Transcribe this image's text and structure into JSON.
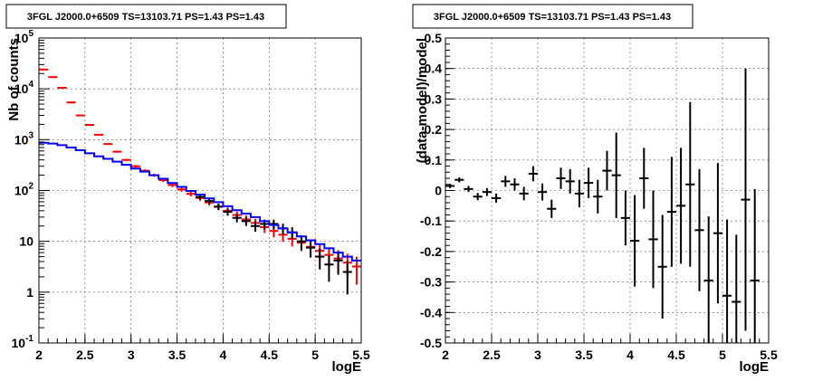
{
  "chart_data": [
    {
      "type": "scatter",
      "title": "3FGL J2000.0+6509 TS=13103.71 PS=1.43 PS=1.43",
      "xlabel": "logE",
      "ylabel": "Nb of counts",
      "yscale": "log",
      "xlim": [
        2,
        5.5
      ],
      "ylim": [
        0.1,
        100000
      ],
      "grid": true,
      "x_ticks": [
        "2",
        "2.5",
        "3",
        "3.5",
        "4",
        "4.5",
        "5",
        "5.5"
      ],
      "y_ticks": [
        "10^-1",
        "1",
        "10",
        "10^2",
        "10^3",
        "10^4",
        "10^5"
      ],
      "bin_width": 0.1,
      "series": [
        {
          "color": "#ff0000",
          "style": "errorbar",
          "x": [
            2.05,
            2.15,
            2.25,
            2.35,
            2.45,
            2.55,
            2.65,
            2.75,
            2.85,
            2.95,
            3.05,
            3.15,
            3.25,
            3.35,
            3.45,
            3.55,
            3.65,
            3.75,
            3.85,
            3.95,
            4.05,
            4.15,
            4.25,
            4.35,
            4.45,
            4.55,
            4.65,
            4.75,
            4.85,
            4.95,
            5.05,
            5.15,
            5.25,
            5.35,
            5.45
          ],
          "y": [
            24000,
            17000,
            10500,
            5400,
            3000,
            1950,
            1250,
            820,
            580,
            400,
            300,
            245,
            200,
            160,
            128,
            105,
            86,
            71,
            58,
            48,
            40,
            33,
            27,
            23,
            19,
            16,
            13.5,
            11.2,
            9.4,
            7.8,
            6.5,
            5.4,
            4.6,
            3.8,
            3.2
          ],
          "err": [
            150,
            120,
            100,
            70,
            55,
            45,
            35,
            29,
            24,
            20,
            17,
            16,
            14,
            13,
            11,
            10,
            9.3,
            8.4,
            7.6,
            6.9,
            6.3,
            5.7,
            5.2,
            4.8,
            4.4,
            4,
            3.7,
            3.3,
            3,
            2.8,
            2.5,
            2.3,
            2.1,
            1.9,
            1.8
          ]
        },
        {
          "color": "#000000",
          "style": "errorbar",
          "x": [
            3.75,
            3.85,
            3.95,
            4.05,
            4.15,
            4.25,
            4.35,
            4.45,
            4.55,
            4.65,
            4.75,
            4.85,
            4.95,
            5.05,
            5.15,
            5.25,
            5.35
          ],
          "y": [
            75,
            62,
            48,
            38,
            29,
            25,
            20,
            22,
            22,
            18,
            15,
            10,
            7.5,
            5,
            3.5,
            4.2,
            2.5
          ],
          "err": [
            8.7,
            7.9,
            6.9,
            6.2,
            5.4,
            5,
            4.5,
            4.7,
            4.7,
            4.2,
            3.9,
            3.2,
            2.7,
            2.2,
            1.9,
            2,
            1.6
          ]
        },
        {
          "color": "#0000ff",
          "style": "step",
          "x": [
            2.05,
            2.15,
            2.25,
            2.35,
            2.45,
            2.55,
            2.65,
            2.75,
            2.85,
            2.95,
            3.05,
            3.15,
            3.25,
            3.35,
            3.45,
            3.55,
            3.65,
            3.75,
            3.85,
            3.95,
            4.05,
            4.15,
            4.25,
            4.35,
            4.45,
            4.55,
            4.65,
            4.75,
            4.85,
            4.95,
            5.05,
            5.15,
            5.25,
            5.35,
            5.45
          ],
          "y": [
            870,
            840,
            780,
            700,
            620,
            540,
            470,
            420,
            370,
            320,
            270,
            235,
            200,
            170,
            140,
            118,
            98,
            83,
            70,
            59,
            49,
            41,
            35,
            30,
            25,
            21,
            18,
            15,
            12.5,
            10.5,
            8.8,
            7.3,
            6,
            5,
            4.2
          ]
        }
      ]
    },
    {
      "type": "scatter",
      "title": "3FGL J2000.0+6509 TS=13103.71 PS=1.43 PS=1.43",
      "xlabel": "logE",
      "ylabel": "(data-model)/model",
      "xlim": [
        2,
        5.5
      ],
      "ylim": [
        -0.5,
        0.5
      ],
      "grid": true,
      "x_ticks": [
        "2",
        "2.5",
        "3",
        "3.5",
        "4",
        "4.5",
        "5",
        "5.5"
      ],
      "y_ticks": [
        "-0.5",
        "-0.4",
        "-0.3",
        "-0.2",
        "-0.1",
        "0",
        "0.1",
        "0.2",
        "0.3",
        "0.4",
        "0.5"
      ],
      "bin_width": 0.1,
      "series": [
        {
          "color": "#000000",
          "style": "errorbar",
          "x": [
            2.05,
            2.15,
            2.25,
            2.35,
            2.45,
            2.55,
            2.65,
            2.75,
            2.85,
            2.95,
            3.05,
            3.15,
            3.25,
            3.35,
            3.45,
            3.55,
            3.65,
            3.75,
            3.85,
            3.95,
            4.05,
            4.15,
            4.25,
            4.35,
            4.45,
            4.55,
            4.65,
            4.75,
            4.85,
            4.95,
            5.05,
            5.15,
            5.25,
            5.35
          ],
          "y": [
            0.015,
            0.035,
            0.005,
            -0.02,
            -0.005,
            -0.025,
            0.03,
            0.02,
            -0.01,
            0.055,
            -0.005,
            -0.06,
            0.04,
            0.03,
            -0.01,
            0.025,
            -0.02,
            0.065,
            0.05,
            -0.09,
            -0.165,
            0.04,
            -0.16,
            -0.25,
            -0.07,
            -0.05,
            0.02,
            -0.13,
            -0.295,
            -0.14,
            -0.345,
            -0.365,
            -0.03,
            -0.295
          ],
          "err": [
            0.007,
            0.008,
            0.01,
            0.012,
            0.013,
            0.015,
            0.018,
            0.02,
            0.022,
            0.025,
            0.028,
            0.03,
            0.035,
            0.04,
            0.045,
            0.05,
            0.055,
            0.065,
            0.14,
            0.09,
            0.15,
            0.1,
            0.16,
            0.17,
            0.18,
            0.19,
            0.27,
            0.2,
            0.21,
            0.23,
            0.25,
            0.22,
            0.43,
            0.3
          ]
        }
      ]
    }
  ]
}
